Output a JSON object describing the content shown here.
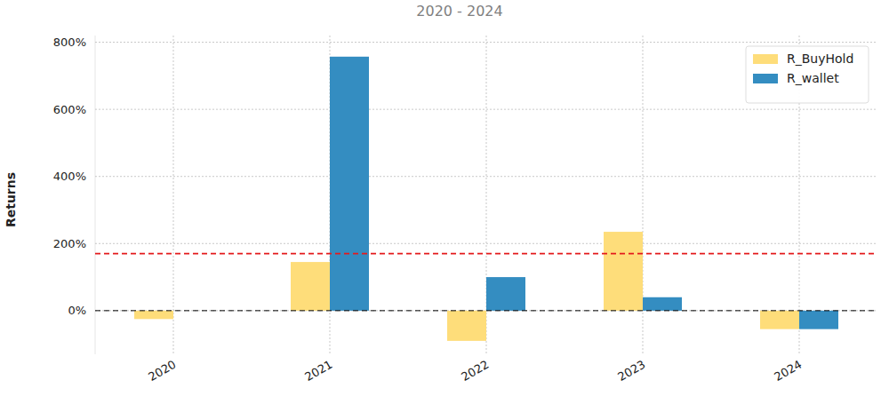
{
  "chart_data": {
    "type": "bar",
    "title": "2020 - 2024",
    "y_label": "Returns",
    "categories": [
      "2020",
      "2021",
      "2022",
      "2023",
      "2024"
    ],
    "series": [
      {
        "name": "R_BuyHold",
        "color": "#fedd7a",
        "values": [
          -25,
          145,
          -90,
          235,
          -55
        ]
      },
      {
        "name": "R_wallet",
        "color": "#348dc1",
        "values": [
          0,
          757,
          100,
          40,
          -55
        ]
      }
    ],
    "ylim": [
      -130,
      820
    ],
    "yticks": [
      {
        "value": 0,
        "label": "0%"
      },
      {
        "value": 200,
        "label": "200%"
      },
      {
        "value": 400,
        "label": "400%"
      },
      {
        "value": 600,
        "label": "600%"
      },
      {
        "value": 800,
        "label": "800%"
      }
    ],
    "reference_lines": [
      {
        "value": 170,
        "color": "#e41a1c"
      },
      {
        "value": 0,
        "color": "#000000"
      }
    ],
    "grid": true,
    "legend": "upper right"
  }
}
